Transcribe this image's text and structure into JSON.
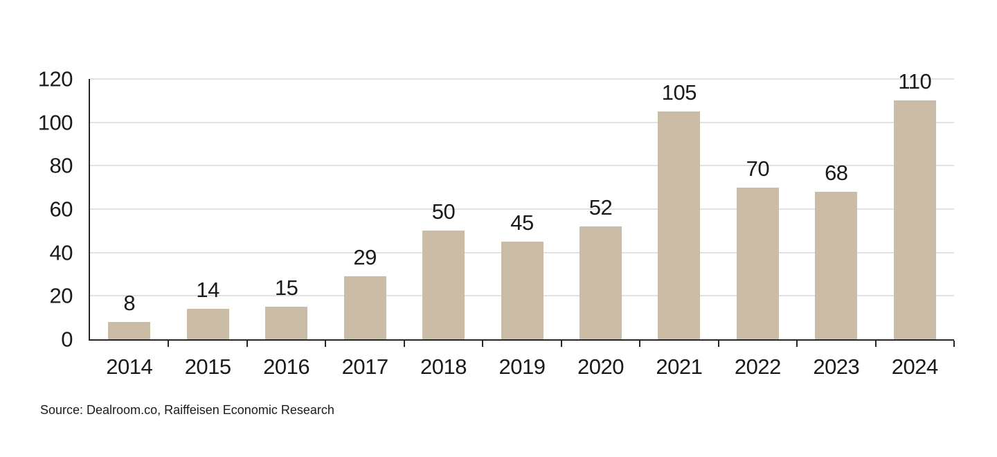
{
  "page": {
    "background_color": "#ffffff",
    "text_color": "#1a1a1a"
  },
  "chart_data": {
    "type": "bar",
    "title": "",
    "categories": [
      "2014",
      "2015",
      "2016",
      "2017",
      "2018",
      "2019",
      "2020",
      "2021",
      "2022",
      "2023",
      "2024"
    ],
    "values": [
      8,
      14,
      15,
      29,
      50,
      45,
      52,
      105,
      70,
      68,
      110
    ],
    "data_labels": [
      8,
      14,
      15,
      29,
      50,
      45,
      52,
      105,
      70,
      68,
      110
    ],
    "xlabel": "",
    "ylabel": "",
    "ylim": [
      0,
      120
    ],
    "yticks": [
      0,
      20,
      40,
      60,
      80,
      100,
      120
    ],
    "grid": "horizontal",
    "legend": "none",
    "colors": {
      "bar": "#cbbca8",
      "gridline": "#e2e2e2",
      "axis": "#262626",
      "label_text": "#1a1a1a"
    }
  },
  "footer": {
    "source_note": "Source: Dealroom.co, Raiffeisen Economic Research"
  }
}
